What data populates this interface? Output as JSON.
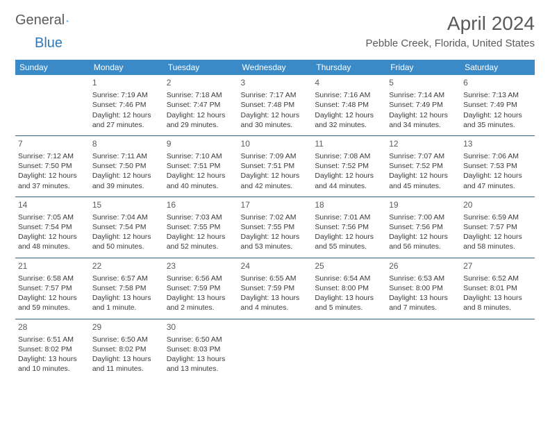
{
  "logo": {
    "word1": "General",
    "word2": "Blue"
  },
  "header": {
    "month_title": "April 2024",
    "location": "Pebble Creek, Florida, United States"
  },
  "colors": {
    "header_bg": "#3a8ac8",
    "header_fg": "#ffffff",
    "cell_border": "#2f5f85",
    "text": "#3a3a3a",
    "muted": "#5a5a5a",
    "logo_blue": "#2f79b9"
  },
  "day_names": [
    "Sunday",
    "Monday",
    "Tuesday",
    "Wednesday",
    "Thursday",
    "Friday",
    "Saturday"
  ],
  "weeks": [
    [
      null,
      {
        "n": "1",
        "sr": "Sunrise: 7:19 AM",
        "ss": "Sunset: 7:46 PM",
        "d1": "Daylight: 12 hours",
        "d2": "and 27 minutes."
      },
      {
        "n": "2",
        "sr": "Sunrise: 7:18 AM",
        "ss": "Sunset: 7:47 PM",
        "d1": "Daylight: 12 hours",
        "d2": "and 29 minutes."
      },
      {
        "n": "3",
        "sr": "Sunrise: 7:17 AM",
        "ss": "Sunset: 7:48 PM",
        "d1": "Daylight: 12 hours",
        "d2": "and 30 minutes."
      },
      {
        "n": "4",
        "sr": "Sunrise: 7:16 AM",
        "ss": "Sunset: 7:48 PM",
        "d1": "Daylight: 12 hours",
        "d2": "and 32 minutes."
      },
      {
        "n": "5",
        "sr": "Sunrise: 7:14 AM",
        "ss": "Sunset: 7:49 PM",
        "d1": "Daylight: 12 hours",
        "d2": "and 34 minutes."
      },
      {
        "n": "6",
        "sr": "Sunrise: 7:13 AM",
        "ss": "Sunset: 7:49 PM",
        "d1": "Daylight: 12 hours",
        "d2": "and 35 minutes."
      }
    ],
    [
      {
        "n": "7",
        "sr": "Sunrise: 7:12 AM",
        "ss": "Sunset: 7:50 PM",
        "d1": "Daylight: 12 hours",
        "d2": "and 37 minutes."
      },
      {
        "n": "8",
        "sr": "Sunrise: 7:11 AM",
        "ss": "Sunset: 7:50 PM",
        "d1": "Daylight: 12 hours",
        "d2": "and 39 minutes."
      },
      {
        "n": "9",
        "sr": "Sunrise: 7:10 AM",
        "ss": "Sunset: 7:51 PM",
        "d1": "Daylight: 12 hours",
        "d2": "and 40 minutes."
      },
      {
        "n": "10",
        "sr": "Sunrise: 7:09 AM",
        "ss": "Sunset: 7:51 PM",
        "d1": "Daylight: 12 hours",
        "d2": "and 42 minutes."
      },
      {
        "n": "11",
        "sr": "Sunrise: 7:08 AM",
        "ss": "Sunset: 7:52 PM",
        "d1": "Daylight: 12 hours",
        "d2": "and 44 minutes."
      },
      {
        "n": "12",
        "sr": "Sunrise: 7:07 AM",
        "ss": "Sunset: 7:52 PM",
        "d1": "Daylight: 12 hours",
        "d2": "and 45 minutes."
      },
      {
        "n": "13",
        "sr": "Sunrise: 7:06 AM",
        "ss": "Sunset: 7:53 PM",
        "d1": "Daylight: 12 hours",
        "d2": "and 47 minutes."
      }
    ],
    [
      {
        "n": "14",
        "sr": "Sunrise: 7:05 AM",
        "ss": "Sunset: 7:54 PM",
        "d1": "Daylight: 12 hours",
        "d2": "and 48 minutes."
      },
      {
        "n": "15",
        "sr": "Sunrise: 7:04 AM",
        "ss": "Sunset: 7:54 PM",
        "d1": "Daylight: 12 hours",
        "d2": "and 50 minutes."
      },
      {
        "n": "16",
        "sr": "Sunrise: 7:03 AM",
        "ss": "Sunset: 7:55 PM",
        "d1": "Daylight: 12 hours",
        "d2": "and 52 minutes."
      },
      {
        "n": "17",
        "sr": "Sunrise: 7:02 AM",
        "ss": "Sunset: 7:55 PM",
        "d1": "Daylight: 12 hours",
        "d2": "and 53 minutes."
      },
      {
        "n": "18",
        "sr": "Sunrise: 7:01 AM",
        "ss": "Sunset: 7:56 PM",
        "d1": "Daylight: 12 hours",
        "d2": "and 55 minutes."
      },
      {
        "n": "19",
        "sr": "Sunrise: 7:00 AM",
        "ss": "Sunset: 7:56 PM",
        "d1": "Daylight: 12 hours",
        "d2": "and 56 minutes."
      },
      {
        "n": "20",
        "sr": "Sunrise: 6:59 AM",
        "ss": "Sunset: 7:57 PM",
        "d1": "Daylight: 12 hours",
        "d2": "and 58 minutes."
      }
    ],
    [
      {
        "n": "21",
        "sr": "Sunrise: 6:58 AM",
        "ss": "Sunset: 7:57 PM",
        "d1": "Daylight: 12 hours",
        "d2": "and 59 minutes."
      },
      {
        "n": "22",
        "sr": "Sunrise: 6:57 AM",
        "ss": "Sunset: 7:58 PM",
        "d1": "Daylight: 13 hours",
        "d2": "and 1 minute."
      },
      {
        "n": "23",
        "sr": "Sunrise: 6:56 AM",
        "ss": "Sunset: 7:59 PM",
        "d1": "Daylight: 13 hours",
        "d2": "and 2 minutes."
      },
      {
        "n": "24",
        "sr": "Sunrise: 6:55 AM",
        "ss": "Sunset: 7:59 PM",
        "d1": "Daylight: 13 hours",
        "d2": "and 4 minutes."
      },
      {
        "n": "25",
        "sr": "Sunrise: 6:54 AM",
        "ss": "Sunset: 8:00 PM",
        "d1": "Daylight: 13 hours",
        "d2": "and 5 minutes."
      },
      {
        "n": "26",
        "sr": "Sunrise: 6:53 AM",
        "ss": "Sunset: 8:00 PM",
        "d1": "Daylight: 13 hours",
        "d2": "and 7 minutes."
      },
      {
        "n": "27",
        "sr": "Sunrise: 6:52 AM",
        "ss": "Sunset: 8:01 PM",
        "d1": "Daylight: 13 hours",
        "d2": "and 8 minutes."
      }
    ],
    [
      {
        "n": "28",
        "sr": "Sunrise: 6:51 AM",
        "ss": "Sunset: 8:02 PM",
        "d1": "Daylight: 13 hours",
        "d2": "and 10 minutes."
      },
      {
        "n": "29",
        "sr": "Sunrise: 6:50 AM",
        "ss": "Sunset: 8:02 PM",
        "d1": "Daylight: 13 hours",
        "d2": "and 11 minutes."
      },
      {
        "n": "30",
        "sr": "Sunrise: 6:50 AM",
        "ss": "Sunset: 8:03 PM",
        "d1": "Daylight: 13 hours",
        "d2": "and 13 minutes."
      },
      null,
      null,
      null,
      null
    ]
  ]
}
